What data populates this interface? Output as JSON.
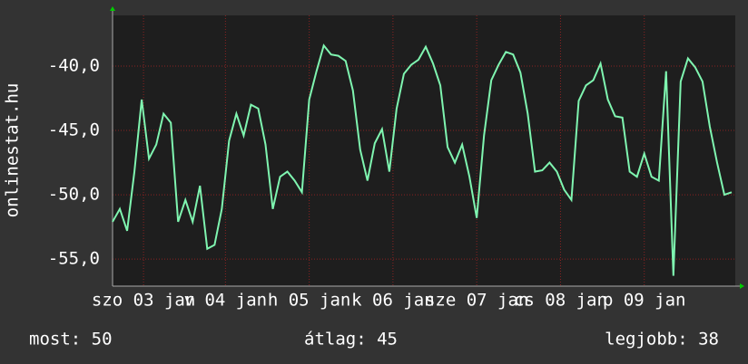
{
  "chart_data": {
    "type": "line",
    "y_label": "onlinestat.hu",
    "x": [
      0,
      2,
      4,
      6,
      8,
      10,
      12,
      14,
      16,
      18,
      20,
      22,
      24,
      26,
      28,
      30,
      32,
      34,
      36,
      38,
      40,
      42,
      44,
      46,
      48,
      50,
      52,
      54,
      56,
      58,
      60,
      62,
      64,
      66,
      68,
      70,
      72,
      74,
      76,
      78,
      80,
      82,
      84,
      86,
      88,
      90,
      92,
      94,
      96,
      98,
      100,
      102,
      104,
      106,
      108,
      110,
      112,
      114,
      116,
      118,
      120,
      122,
      124,
      126,
      128,
      130,
      132,
      134,
      136,
      138,
      140,
      142,
      144,
      146,
      148,
      150,
      152,
      154,
      156,
      158,
      160,
      162,
      164,
      166,
      168,
      170
    ],
    "series": [
      {
        "name": "onlinestat.hu",
        "color": "#7ff5b0",
        "values": [
          -52.1,
          -51.1,
          -52.8,
          -48.2,
          -42.6,
          -47.2,
          -46.1,
          -43.7,
          -44.4,
          -52.1,
          -50.4,
          -52.1,
          -49.3,
          -54.2,
          -53.9,
          -51.1,
          -45.8,
          -43.7,
          -45.4,
          -43.0,
          -43.3,
          -46.1,
          -51.1,
          -48.6,
          -48.2,
          -48.9,
          -49.8,
          -42.6,
          -40.4,
          -38.4,
          -39.1,
          -39.2,
          -39.6,
          -41.9,
          -46.5,
          -48.9,
          -46.0,
          -44.9,
          -48.2,
          -43.3,
          -40.6,
          -39.9,
          -39.5,
          -38.5,
          -39.8,
          -41.5,
          -46.3,
          -47.5,
          -46.1,
          -48.6,
          -51.8,
          -45.4,
          -41.1,
          -39.9,
          -38.9,
          -39.1,
          -40.5,
          -43.7,
          -48.2,
          -48.1,
          -47.5,
          -48.2,
          -49.6,
          -50.4,
          -42.7,
          -41.5,
          -41.1,
          -39.8,
          -42.6,
          -43.9,
          -44.0,
          -48.2,
          -48.6,
          -46.8,
          -48.6,
          -48.9,
          -40.4,
          -56.3,
          -41.2,
          -39.4,
          -40.1,
          -41.2,
          -44.7,
          -47.5,
          -50.0,
          -49.8
        ]
      }
    ],
    "xlim": [
      0,
      171
    ],
    "xticks": [
      {
        "value": 8.5,
        "label": "szo 03 jan"
      },
      {
        "value": 31,
        "label": "v 04 jan"
      },
      {
        "value": 54,
        "label": "h 05 jan"
      },
      {
        "value": 77,
        "label": "k 06 jan"
      },
      {
        "value": 100,
        "label": "sze 07 jan"
      },
      {
        "value": 123,
        "label": "cs 08 jan"
      },
      {
        "value": 146,
        "label": "p 09 jan"
      }
    ],
    "ylim": [
      -57.1,
      -36.06
    ],
    "yticks": [
      {
        "value": -40,
        "label": "-40,0"
      },
      {
        "value": -45,
        "label": "-45,0"
      },
      {
        "value": -50,
        "label": "-50,0"
      },
      {
        "value": -55,
        "label": "-55,0"
      }
    ],
    "grid": true,
    "footer": [
      "most: 50",
      "átlag: 45",
      "legjobb: 38"
    ]
  }
}
